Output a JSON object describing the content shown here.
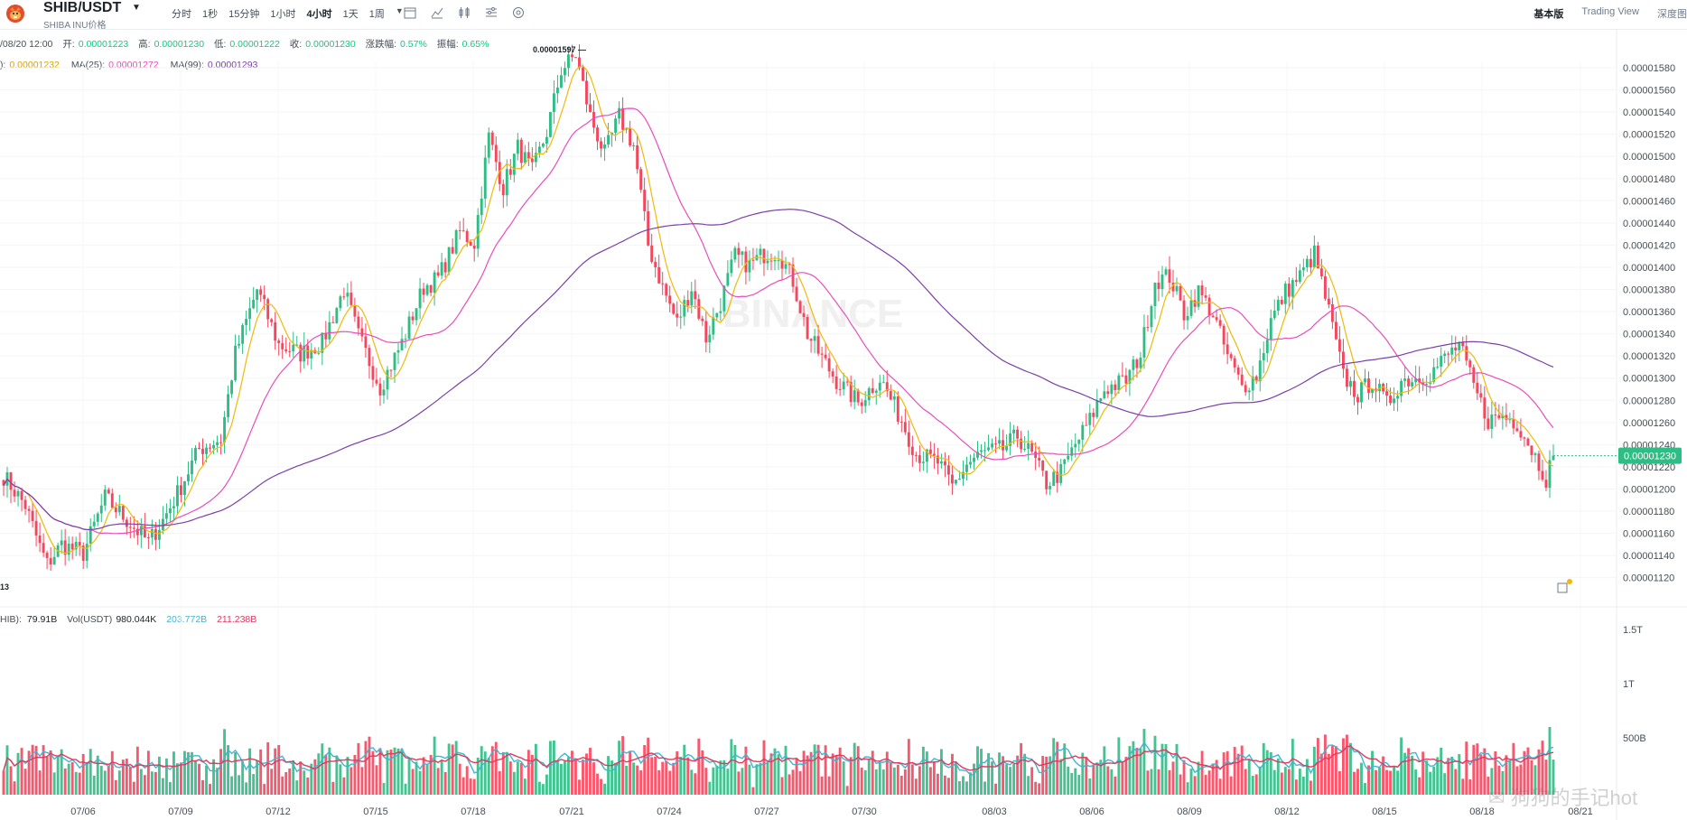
{
  "header": {
    "pair": "SHIB/USDT",
    "subtitle": "SHIBA INU价格",
    "intervals": [
      "分时",
      "1秒",
      "15分钟",
      "1小时",
      "4小时",
      "1天",
      "1周"
    ],
    "active_interval": "4小时",
    "views": [
      "基本版",
      "Trading View",
      "深度图"
    ],
    "active_view": "基本版"
  },
  "info": {
    "date": "/08/20 12:00",
    "open_label": "开:",
    "open": "0.00001223",
    "high_label": "高:",
    "high": "0.00001230",
    "low_label": "低:",
    "low": "0.00001222",
    "close_label": "收:",
    "close": "0.00001230",
    "change_label": "涨跌幅:",
    "change": "0.57%",
    "amp_label": "振幅:",
    "amp": "0.65%"
  },
  "ma": {
    "ma7_label": "):",
    "ma7": "0.00001232",
    "ma7_color": "#f0b90b",
    "ma25_label": "MA(25):",
    "ma25": "0.00001272",
    "ma25_color": "#e84dbc",
    "ma99_label": "MA(99):",
    "ma99": "0.00001293",
    "ma99_color": "#7b3fa8"
  },
  "volume": {
    "label": "HIB):",
    "value": "79.91B",
    "usdt_label": "Vol(USDT)",
    "usdt": "980.044K",
    "ma5": "203.772B",
    "ma5_color": "#3fb6d4",
    "ma10": "211.238B",
    "ma10_color": "#e03a5e"
  },
  "chart_data": {
    "type": "candlestick",
    "price_ticks": [
      "0.00001580",
      "0.00001560",
      "0.00001540",
      "0.00001520",
      "0.00001500",
      "0.00001480",
      "0.00001460",
      "0.00001440",
      "0.00001420",
      "0.00001400",
      "0.00001380",
      "0.00001360",
      "0.00001340",
      "0.00001320",
      "0.00001300",
      "0.00001280",
      "0.00001260",
      "0.00001240",
      "0.00001220",
      "0.00001200",
      "0.00001180",
      "0.00001160",
      "0.00001140",
      "0.00001120"
    ],
    "price_range": [
      1.112,
      1.597
    ],
    "current_price": "0.00001230",
    "max_marker": "0.00001597",
    "min_marker": "13",
    "volume_ticks": [
      "1.5T",
      "1T",
      "500B"
    ],
    "x_labels": [
      "07/06",
      "07/09",
      "07/12",
      "07/15",
      "07/18",
      "07/21",
      "07/24",
      "07/27",
      "07/30",
      "08/03",
      "08/06",
      "08/09",
      "08/12",
      "08/15",
      "08/18",
      "08/21"
    ],
    "anchors": [
      [
        0,
        1.212
      ],
      [
        6,
        1.185
      ],
      [
        10,
        1.148
      ],
      [
        12,
        1.132
      ],
      [
        16,
        1.15
      ],
      [
        22,
        1.142
      ],
      [
        28,
        1.192
      ],
      [
        34,
        1.172
      ],
      [
        40,
        1.152
      ],
      [
        44,
        1.172
      ],
      [
        48,
        1.196
      ],
      [
        54,
        1.236
      ],
      [
        60,
        1.245
      ],
      [
        64,
        1.322
      ],
      [
        70,
        1.38
      ],
      [
        76,
        1.33
      ],
      [
        82,
        1.322
      ],
      [
        88,
        1.332
      ],
      [
        94,
        1.38
      ],
      [
        98,
        1.338
      ],
      [
        104,
        1.292
      ],
      [
        110,
        1.332
      ],
      [
        116,
        1.382
      ],
      [
        120,
        1.39
      ],
      [
        126,
        1.432
      ],
      [
        130,
        1.422
      ],
      [
        134,
        1.518
      ],
      [
        138,
        1.472
      ],
      [
        142,
        1.508
      ],
      [
        146,
        1.486
      ],
      [
        150,
        1.522
      ],
      [
        154,
        1.578
      ],
      [
        158,
        1.592
      ],
      [
        162,
        1.536
      ],
      [
        166,
        1.502
      ],
      [
        170,
        1.536
      ],
      [
        174,
        1.51
      ],
      [
        178,
        1.42
      ],
      [
        182,
        1.382
      ],
      [
        186,
        1.35
      ],
      [
        190,
        1.382
      ],
      [
        194,
        1.336
      ],
      [
        198,
        1.368
      ],
      [
        202,
        1.41
      ],
      [
        206,
        1.402
      ],
      [
        210,
        1.412
      ],
      [
        214,
        1.414
      ],
      [
        218,
        1.388
      ],
      [
        222,
        1.34
      ],
      [
        226,
        1.318
      ],
      [
        230,
        1.298
      ],
      [
        236,
        1.278
      ],
      [
        242,
        1.3
      ],
      [
        248,
        1.262
      ],
      [
        252,
        1.232
      ],
      [
        258,
        1.224
      ],
      [
        262,
        1.202
      ],
      [
        266,
        1.222
      ],
      [
        270,
        1.232
      ],
      [
        276,
        1.236
      ],
      [
        280,
        1.248
      ],
      [
        284,
        1.23
      ],
      [
        288,
        1.205
      ],
      [
        292,
        1.215
      ],
      [
        296,
        1.24
      ],
      [
        300,
        1.262
      ],
      [
        304,
        1.29
      ],
      [
        310,
        1.298
      ],
      [
        314,
        1.322
      ],
      [
        318,
        1.388
      ],
      [
        322,
        1.392
      ],
      [
        326,
        1.358
      ],
      [
        330,
        1.378
      ],
      [
        334,
        1.358
      ],
      [
        338,
        1.32
      ],
      [
        342,
        1.292
      ],
      [
        346,
        1.302
      ],
      [
        350,
        1.352
      ],
      [
        354,
        1.378
      ],
      [
        358,
        1.392
      ],
      [
        362,
        1.412
      ],
      [
        366,
        1.36
      ],
      [
        370,
        1.302
      ],
      [
        374,
        1.285
      ],
      [
        378,
        1.298
      ],
      [
        382,
        1.276
      ],
      [
        386,
        1.298
      ],
      [
        390,
        1.3
      ],
      [
        394,
        1.304
      ],
      [
        398,
        1.318
      ],
      [
        402,
        1.33
      ],
      [
        406,
        1.292
      ],
      [
        410,
        1.262
      ],
      [
        414,
        1.266
      ],
      [
        418,
        1.26
      ],
      [
        422,
        1.236
      ],
      [
        426,
        1.21
      ],
      [
        428,
        1.23
      ]
    ],
    "series": [
      {
        "name": "MA(7)",
        "color": "#f0b90b"
      },
      {
        "name": "MA(25)",
        "color": "#e84dbc"
      },
      {
        "name": "MA(99)",
        "color": "#7b3fa8"
      }
    ],
    "up_color": "#2ebd85",
    "down_color": "#f6465d"
  }
}
